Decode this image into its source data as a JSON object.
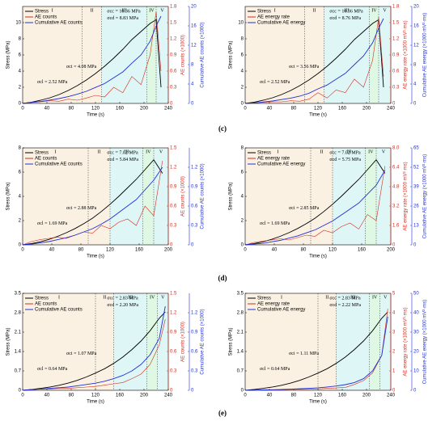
{
  "panel_labels": [
    "(c)",
    "(d)",
    "(e)"
  ],
  "chart_data": [
    {
      "type": "line",
      "xlabel": "Time (s)",
      "ylabel": "Stress (MPa)",
      "y2label": "AE counts (×1000)",
      "y3label": "Cumulative AE counts (×1000)",
      "xlim": [
        0,
        240
      ],
      "xticks": [
        0,
        40,
        80,
        120,
        160,
        200,
        240
      ],
      "ylim": [
        0,
        12
      ],
      "yticks": [
        0,
        2,
        4,
        6,
        8,
        10
      ],
      "y2lim": [
        0,
        1.8
      ],
      "y2ticks": [
        0,
        0.3,
        0.6,
        0.9,
        1.2,
        1.5,
        1.8
      ],
      "y3lim": [
        0,
        20
      ],
      "y3ticks": [
        0,
        4,
        8,
        12,
        16,
        20
      ],
      "stages": [
        "I",
        "II",
        "III",
        "IV",
        "V"
      ],
      "stage_bounds": [
        0,
        98,
        130,
        205,
        220,
        240
      ],
      "annotations": [
        "σcc = 10.36 MPa",
        "σcd = 8.83 MPa",
        "σci = 4.08 MPa",
        "σcl = 2.52 MPa"
      ],
      "x": [
        0,
        15,
        30,
        45,
        60,
        75,
        90,
        105,
        120,
        135,
        150,
        165,
        180,
        195,
        210,
        220,
        228
      ],
      "series": [
        {
          "name": "Stress",
          "color": "#000000",
          "axis": "y",
          "values": [
            0,
            0.15,
            0.4,
            0.7,
            1.1,
            1.6,
            2.2,
            2.9,
            3.7,
            4.6,
            5.6,
            6.7,
            7.9,
            8.9,
            9.9,
            10.36,
            2.0
          ]
        },
        {
          "name": "AE counts",
          "color": "#d62a1e",
          "axis": "y2",
          "values": [
            0,
            0.02,
            0.03,
            0.05,
            0.04,
            0.08,
            0.06,
            0.1,
            0.15,
            0.12,
            0.3,
            0.2,
            0.5,
            0.35,
            0.9,
            1.7,
            0.6
          ]
        },
        {
          "name": "Cumulative AE counts",
          "color": "#1f2fd6",
          "axis": "y3",
          "values": [
            0,
            0.2,
            0.4,
            0.7,
            1.0,
            1.4,
            1.9,
            2.5,
            3.3,
            4.1,
            5.3,
            6.5,
            8.3,
            10,
            12.8,
            16,
            18
          ]
        }
      ]
    },
    {
      "type": "line",
      "xlabel": "Time (s)",
      "ylabel": "Stress (MPa)",
      "y2label": "AE energy rate (×1000 mV²·ms)",
      "y3label": "Cumulative AE energy (×1000 mV²·ms)",
      "xlim": [
        0,
        240
      ],
      "xticks": [
        0,
        40,
        80,
        120,
        160,
        200,
        240
      ],
      "ylim": [
        0,
        12
      ],
      "yticks": [
        0,
        2,
        4,
        6,
        8,
        10
      ],
      "y2lim": [
        0,
        1.8
      ],
      "y2ticks": [
        0,
        0.3,
        0.6,
        0.9,
        1.2,
        1.5,
        1.8
      ],
      "y3lim": [
        0,
        20
      ],
      "y3ticks": [
        0,
        4,
        8,
        12,
        16,
        20
      ],
      "stages": [
        "I",
        "II",
        "III",
        "IV",
        "V"
      ],
      "stage_bounds": [
        0,
        98,
        130,
        205,
        220,
        240
      ],
      "annotations": [
        "σcc = 10.36 MPa",
        "σcd = 8.76 MPa",
        "σci = 3.56 MPa",
        "σcl = 2.52 MPa"
      ],
      "x": [
        0,
        15,
        30,
        45,
        60,
        75,
        90,
        105,
        120,
        135,
        150,
        165,
        180,
        195,
        210,
        220,
        228
      ],
      "series": [
        {
          "name": "Stress",
          "color": "#000000",
          "axis": "y",
          "values": [
            0,
            0.15,
            0.4,
            0.7,
            1.1,
            1.6,
            2.2,
            2.9,
            3.7,
            4.6,
            5.6,
            6.7,
            7.9,
            8.9,
            9.9,
            10.36,
            2.0
          ]
        },
        {
          "name": "AE energy rate",
          "color": "#d62a1e",
          "axis": "y2",
          "values": [
            0,
            0.01,
            0.02,
            0.03,
            0.03,
            0.05,
            0.04,
            0.08,
            0.2,
            0.1,
            0.25,
            0.2,
            0.45,
            0.3,
            0.8,
            1.6,
            0.5
          ]
        },
        {
          "name": "Cumulative AE energy",
          "color": "#1f2fd6",
          "axis": "y3",
          "values": [
            0,
            0.1,
            0.3,
            0.5,
            0.8,
            1.1,
            1.5,
            2.1,
            3.0,
            3.8,
            5,
            6.2,
            8,
            9.8,
            12.5,
            15.5,
            17.5
          ]
        }
      ]
    },
    {
      "type": "line",
      "xlabel": "Time (s)",
      "ylabel": "Stress (MPa)",
      "y2label": "AE counts (×1000)",
      "y3label": "Cumulative AE counts (×1000)",
      "xlim": [
        0,
        200
      ],
      "xticks": [
        0,
        40,
        80,
        120,
        160,
        200
      ],
      "ylim": [
        0,
        8
      ],
      "yticks": [
        0,
        2,
        4,
        6,
        8
      ],
      "y2lim": [
        0,
        1.5
      ],
      "y2ticks": [
        0,
        0.3,
        0.6,
        0.9,
        1.2,
        1.5
      ],
      "y3lim": [
        0,
        1.5
      ],
      "y3ticks": [
        0,
        0.3,
        0.6,
        0.9,
        1.2
      ],
      "stages": [
        "I",
        "II",
        "III",
        "IV",
        "V"
      ],
      "stage_bounds": [
        0,
        90,
        120,
        165,
        180,
        200
      ],
      "annotations": [
        "σcc = 7.02 MPa",
        "σcd = 5.84 MPa",
        "σci = 2.88 MPa",
        "σcl = 1.69 MPa"
      ],
      "x": [
        0,
        12,
        24,
        36,
        48,
        60,
        72,
        84,
        96,
        108,
        120,
        132,
        144,
        156,
        168,
        180,
        192
      ],
      "series": [
        {
          "name": "Stress",
          "color": "#000000",
          "axis": "y",
          "values": [
            0,
            0.1,
            0.25,
            0.45,
            0.7,
            1.0,
            1.35,
            1.75,
            2.2,
            2.75,
            3.35,
            4.0,
            4.7,
            5.4,
            6.2,
            7.02,
            5.9
          ]
        },
        {
          "name": "AE counts",
          "color": "#d62a1e",
          "axis": "y2",
          "values": [
            0,
            0.05,
            0.08,
            0.1,
            0.12,
            0.1,
            0.15,
            0.2,
            0.18,
            0.3,
            0.25,
            0.35,
            0.4,
            0.3,
            0.6,
            0.45,
            1.3
          ]
        },
        {
          "name": "Cumulative AE counts",
          "color": "#1f2fd6",
          "axis": "y3",
          "values": [
            0,
            0.01,
            0.03,
            0.05,
            0.08,
            0.11,
            0.15,
            0.2,
            0.25,
            0.32,
            0.4,
            0.5,
            0.6,
            0.7,
            0.85,
            1.0,
            1.2
          ]
        }
      ]
    },
    {
      "type": "line",
      "xlabel": "Time (s)",
      "ylabel": "Stress (MPa)",
      "y2label": "AE energy rate (×1000 mV²·ms)",
      "y3label": "Cumulative AE energy (×1000 mV²·ms)",
      "xlim": [
        0,
        200
      ],
      "xticks": [
        0,
        40,
        80,
        120,
        160,
        200
      ],
      "ylim": [
        0,
        8
      ],
      "yticks": [
        0,
        2,
        4,
        6,
        8
      ],
      "y2lim": [
        0,
        8
      ],
      "y2ticks": [
        0,
        1.6,
        3.2,
        4.8,
        6.4,
        {
          "value": 8,
          "label": "8.0"
        }
      ],
      "y3lim": [
        0,
        65
      ],
      "y3ticks": [
        0,
        13,
        26,
        39,
        52,
        65
      ],
      "stages": [
        "I",
        "II",
        "III",
        "IV",
        "V"
      ],
      "stage_bounds": [
        0,
        90,
        120,
        165,
        180,
        200
      ],
      "annotations": [
        "σcc = 7.02 MPa",
        "σcd = 5.75 MPa",
        "σci = 2.85 MPa",
        "σcl = 1.69 MPa"
      ],
      "x": [
        0,
        12,
        24,
        36,
        48,
        60,
        72,
        84,
        96,
        108,
        120,
        132,
        144,
        156,
        168,
        180,
        192
      ],
      "series": [
        {
          "name": "Stress",
          "color": "#000000",
          "axis": "y",
          "values": [
            0,
            0.1,
            0.25,
            0.45,
            0.7,
            1.0,
            1.35,
            1.75,
            2.2,
            2.75,
            3.35,
            4.0,
            4.7,
            5.4,
            6.2,
            7.02,
            5.9
          ]
        },
        {
          "name": "AE energy rate",
          "color": "#d62a1e",
          "axis": "y2",
          "values": [
            0,
            0.2,
            0.3,
            0.4,
            0.5,
            0.4,
            0.6,
            0.8,
            0.7,
            1.2,
            1.0,
            1.5,
            1.8,
            1.3,
            2.5,
            2.0,
            6.5
          ]
        },
        {
          "name": "Cumulative AE energy",
          "color": "#1f2fd6",
          "axis": "y3",
          "values": [
            0,
            0.5,
            1,
            2,
            3,
            4.5,
            6,
            8,
            10,
            13,
            16,
            20,
            24,
            28,
            34,
            40,
            50
          ]
        }
      ]
    },
    {
      "type": "line",
      "xlabel": "Time (s)",
      "ylabel": "Stress (MPa)",
      "y2label": "AE counts (×1000)",
      "y3label": "Cumulative AE counts (×1000)",
      "xlim": [
        0,
        240
      ],
      "xticks": [
        0,
        40,
        80,
        120,
        160,
        200,
        240
      ],
      "ylim": [
        0,
        3.5
      ],
      "yticks": [
        0,
        0.7,
        1.4,
        2.1,
        2.8,
        3.5
      ],
      "y2lim": [
        0,
        1.5
      ],
      "y2ticks": [
        0,
        0.3,
        0.6,
        0.9,
        1.2,
        1.5
      ],
      "y3lim": [
        0,
        1.5
      ],
      "y3ticks": [
        0,
        0.3,
        0.6,
        0.9,
        1.2
      ],
      "stages": [
        "I",
        "II",
        "III",
        "IV",
        "V"
      ],
      "stage_bounds": [
        0,
        120,
        150,
        205,
        222,
        240
      ],
      "annotations": [
        "σcc = 2.83 MPa",
        "σcd = 2.20 MPa",
        "σci = 1.07 MPa",
        "σcl = 0.64 MPa"
      ],
      "x": [
        0,
        15,
        30,
        45,
        60,
        75,
        90,
        105,
        120,
        135,
        150,
        165,
        180,
        195,
        210,
        225,
        235
      ],
      "series": [
        {
          "name": "Stress",
          "color": "#000000",
          "axis": "y",
          "values": [
            0,
            0.03,
            0.07,
            0.12,
            0.18,
            0.26,
            0.36,
            0.48,
            0.62,
            0.78,
            0.97,
            1.2,
            1.47,
            1.78,
            2.15,
            2.6,
            2.83
          ]
        },
        {
          "name": "AE counts",
          "color": "#d62a1e",
          "axis": "y2",
          "values": [
            0,
            0.01,
            0.02,
            0.02,
            0.03,
            0.03,
            0.04,
            0.05,
            0.06,
            0.08,
            0.1,
            0.12,
            0.18,
            0.25,
            0.4,
            0.7,
            1.1
          ]
        },
        {
          "name": "Cumulative AE counts",
          "color": "#1f2fd6",
          "axis": "y3",
          "values": [
            0,
            0.01,
            0.02,
            0.03,
            0.04,
            0.05,
            0.07,
            0.09,
            0.11,
            0.14,
            0.18,
            0.23,
            0.3,
            0.4,
            0.55,
            0.8,
            1.3
          ]
        }
      ]
    },
    {
      "type": "line",
      "xlabel": "Time (s)",
      "ylabel": "Stress (MPa)",
      "y2label": "AE energy rate (×1000 mV²·ms)",
      "y3label": "Cumulative AE energy (×1000 mV²·ms)",
      "xlim": [
        0,
        240
      ],
      "xticks": [
        0,
        40,
        80,
        120,
        160,
        200,
        240
      ],
      "ylim": [
        0,
        3.5
      ],
      "yticks": [
        0,
        0.7,
        1.4,
        2.1,
        2.8,
        3.5
      ],
      "y2lim": [
        0,
        5
      ],
      "y2ticks": [
        0,
        1,
        2,
        3,
        4,
        5
      ],
      "y3lim": [
        0,
        50
      ],
      "y3ticks": [
        0,
        10,
        20,
        30,
        40,
        50
      ],
      "stages": [
        "I",
        "II",
        "III",
        "IV",
        "V"
      ],
      "stage_bounds": [
        0,
        120,
        150,
        205,
        222,
        240
      ],
      "annotations": [
        "σcc = 2.83 MPa",
        "σcd = 2.22 MPa",
        "σci = 1.11 MPa",
        "σcl = 0.64 MPa"
      ],
      "x": [
        0,
        15,
        30,
        45,
        60,
        75,
        90,
        105,
        120,
        135,
        150,
        165,
        180,
        195,
        210,
        225,
        235
      ],
      "series": [
        {
          "name": "Stress",
          "color": "#000000",
          "axis": "y",
          "values": [
            0,
            0.03,
            0.07,
            0.12,
            0.18,
            0.26,
            0.36,
            0.48,
            0.62,
            0.78,
            0.97,
            1.2,
            1.47,
            1.78,
            2.15,
            2.6,
            2.83
          ]
        },
        {
          "name": "AE energy rate",
          "color": "#d62a1e",
          "axis": "y2",
          "values": [
            0,
            0.01,
            0.02,
            0.02,
            0.03,
            0.04,
            0.05,
            0.05,
            0.07,
            0.1,
            0.12,
            0.15,
            0.3,
            0.5,
            0.9,
            1.8,
            4.2
          ]
        },
        {
          "name": "Cumulative AE energy",
          "color": "#1f2fd6",
          "axis": "y3",
          "values": [
            0,
            0.1,
            0.2,
            0.3,
            0.4,
            0.6,
            0.8,
            1.0,
            1.3,
            1.7,
            2.2,
            2.9,
            4,
            6,
            10,
            18,
            38
          ]
        }
      ]
    }
  ]
}
